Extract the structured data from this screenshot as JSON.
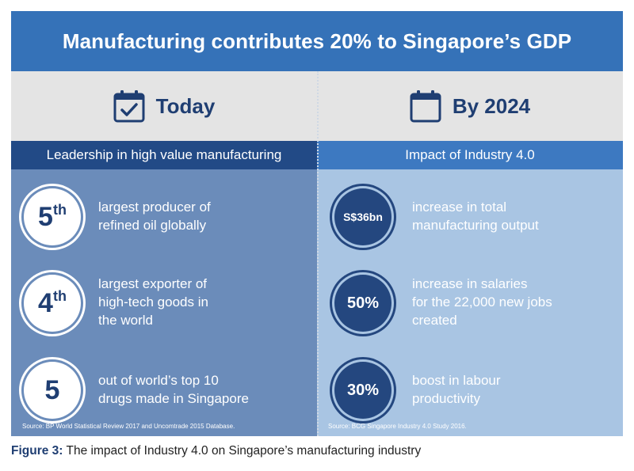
{
  "title": "Manufacturing contributes 20% to Singapore’s GDP",
  "columns": {
    "left": {
      "heading": "Today",
      "subheading": "Leadership in high value manufacturing",
      "source": "Source: BP World Statistical Review 2017 and Uncomtrade 2015 Database.",
      "items": [
        {
          "num": "5",
          "sup": "th",
          "line1": "largest producer of",
          "line2": "refined oil globally",
          "line3": ""
        },
        {
          "num": "4",
          "sup": "th",
          "line1": "largest exporter of",
          "line2": "high-tech goods in",
          "line3": "the world"
        },
        {
          "num": "5",
          "sup": "",
          "line1": "out of world’s top 10",
          "line2": "drugs made in Singapore",
          "line3": ""
        }
      ]
    },
    "right": {
      "heading": "By 2024",
      "subheading": "Impact of Industry 4.0",
      "source": "Source: BCG Singapore Industry 4.0 Study 2016.",
      "items": [
        {
          "value": "S$36bn",
          "line1": "increase in total",
          "line2": "manufacturing output",
          "line3": ""
        },
        {
          "value": "50%",
          "line1": "increase in salaries",
          "line2": "for the 22,000 new jobs",
          "line3": "created"
        },
        {
          "value": "30%",
          "line1": "boost in labour",
          "line2": "productivity",
          "line3": ""
        }
      ]
    }
  },
  "caption": {
    "label": "Figure 3:",
    "text": " The impact of Industry 4.0 on Singapore’s manufacturing industry"
  },
  "colors": {
    "title_bar": "#3572b8",
    "navy": "#1f3e72",
    "left_panel": "#6b8cba",
    "right_panel": "#a9c5e3"
  },
  "icons": [
    "calendar-check-icon",
    "calendar-icon"
  ]
}
